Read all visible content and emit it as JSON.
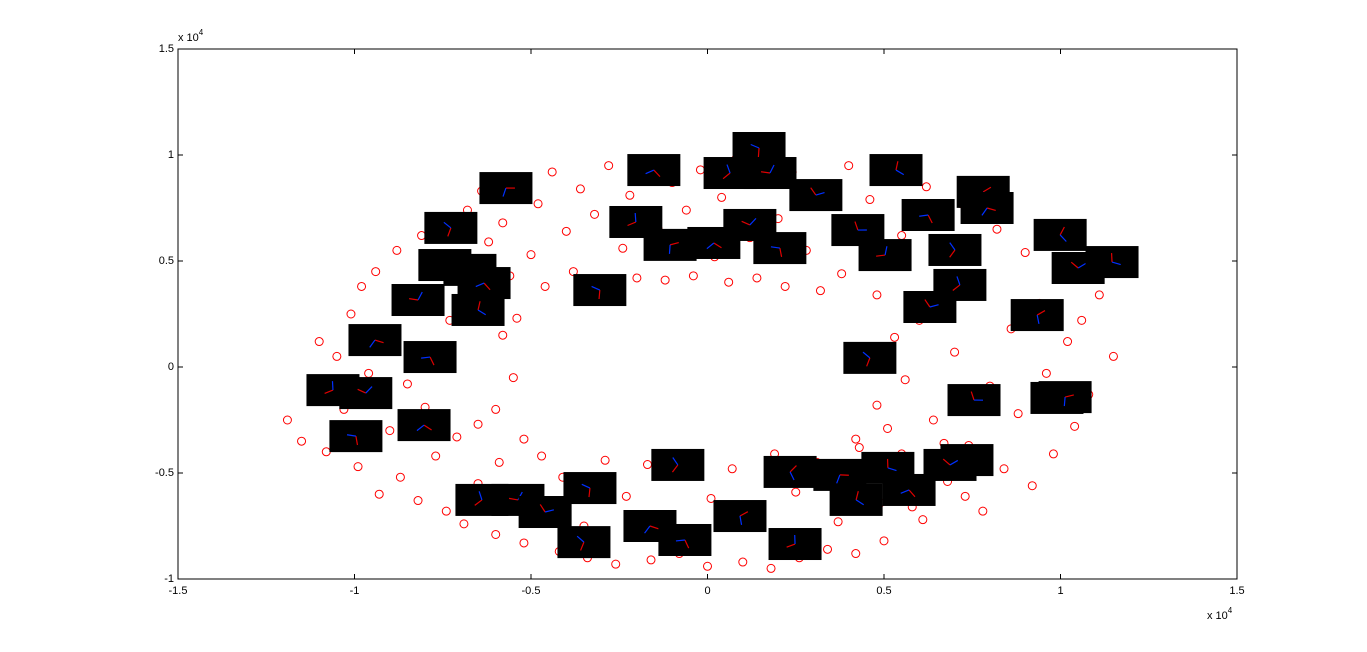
{
  "chart_data": {
    "type": "scatter",
    "xlim": [
      -15000,
      15000
    ],
    "ylim": [
      -10000,
      15000
    ],
    "xticks": [
      {
        "value": -15000,
        "label": "-1.5"
      },
      {
        "value": -10000,
        "label": "-1"
      },
      {
        "value": -5000,
        "label": "-0.5"
      },
      0,
      {
        "value": 5000,
        "label": "0.5"
      },
      {
        "value": 10000,
        "label": "1"
      },
      {
        "value": 15000,
        "label": "1.5"
      }
    ],
    "yticks": [
      {
        "value": -10000,
        "label": "-1"
      },
      {
        "value": -5000,
        "label": "-0.5"
      },
      0,
      {
        "value": 5000,
        "label": "0.5"
      },
      {
        "value": 10000,
        "label": "1"
      },
      {
        "value": 15000,
        "label": "1.5"
      }
    ],
    "x_multiplier": {
      "base": "x 10",
      "exponent": "4"
    },
    "y_multiplier": {
      "base": "x 10",
      "exponent": "4"
    },
    "color": "#ff0000",
    "grid": false,
    "x": [
      -11900,
      -11500,
      -11200,
      -11000,
      -10800,
      -10500,
      -10300,
      -10100,
      -9900,
      -9800,
      -9600,
      -9400,
      -9300,
      -9100,
      -9000,
      -8800,
      -8700,
      -8500,
      -8400,
      -8200,
      -8100,
      -8000,
      -7900,
      -7700,
      -7600,
      -7400,
      -7300,
      -7100,
      -7000,
      -6900,
      -6800,
      -6600,
      -6400,
      -6200,
      -6000,
      -5800,
      -5600,
      -5400,
      -5200,
      -5000,
      -4800,
      -4600,
      -4400,
      -4200,
      -4000,
      -3800,
      -3600,
      -3400,
      -3200,
      -3000,
      -2800,
      -2600,
      -2400,
      -2200,
      -2000,
      -1800,
      -1600,
      -1400,
      -1200,
      -1000,
      -800,
      -600,
      -400,
      -200,
      0,
      200,
      400,
      600,
      800,
      1000,
      1200,
      1400,
      1600,
      1800,
      2000,
      2200,
      2400,
      2600,
      2800,
      3000,
      3200,
      3400,
      3600,
      3800,
      4000,
      4200,
      4400,
      4600,
      4800,
      5000,
      -6500,
      -5900,
      -5300,
      -4700,
      -4100,
      -3500,
      -2900,
      -2300,
      -1700,
      -1100,
      -500,
      100,
      700,
      1300,
      1900,
      2500,
      3100,
      3700,
      4300,
      4900,
      5500,
      6100,
      6700,
      7300,
      5200,
      5500,
      5800,
      6000,
      6200,
      6400,
      6600,
      6800,
      7000,
      7200,
      7400,
      7600,
      7800,
      8000,
      8200,
      8400,
      8600,
      8800,
      9000,
      9200,
      9400,
      9600,
      9800,
      10000,
      10200,
      10400,
      10600,
      10800,
      11100,
      11500,
      4800,
      5100,
      4500,
      5300,
      4200,
      5600,
      -6000,
      -5500,
      -5800,
      -6300,
      -5200,
      -6500,
      -5400
    ],
    "values": [
      -2500,
      -3500,
      -1000,
      1200,
      -4000,
      500,
      -2000,
      2500,
      -4700,
      3800,
      -300,
      4500,
      -6000,
      1800,
      -3000,
      5500,
      -5200,
      -800,
      3000,
      -6300,
      6200,
      -1900,
      4300,
      -4200,
      1000,
      -6800,
      2200,
      -3300,
      5000,
      -7400,
      7400,
      3600,
      8300,
      5900,
      -7900,
      6800,
      4300,
      8800,
      -8300,
      5300,
      7700,
      3800,
      9200,
      -8700,
      6400,
      4500,
      8400,
      -9000,
      7200,
      3500,
      9500,
      -9300,
      5600,
      8100,
      4200,
      9700,
      -9100,
      6500,
      4100,
      8700,
      -8800,
      7400,
      4300,
      9300,
      -9400,
      5200,
      8000,
      4000,
      9800,
      -9200,
      6100,
      4200,
      8900,
      -9500,
      7000,
      3800,
      9200,
      -9000,
      5500,
      8300,
      3600,
      -8600,
      7600,
      4400,
      9500,
      -8800,
      5800,
      7900,
      3400,
      -8200,
      -5500,
      -4500,
      -6300,
      -4200,
      -5200,
      -7500,
      -4400,
      -6100,
      -4600,
      -7800,
      -4300,
      -6200,
      -4800,
      -7000,
      -4100,
      -5900,
      -4500,
      -7300,
      -3800,
      -6400,
      -4100,
      -7200,
      -3600,
      -6100,
      8900,
      6200,
      -6600,
      2200,
      8500,
      -2500,
      5000,
      -5400,
      700,
      7700,
      -3700,
      3600,
      -6800,
      -900,
      6500,
      -4800,
      1800,
      -2200,
      5400,
      -5600,
      3000,
      -300,
      -4100,
      4300,
      1200,
      -2800,
      2200,
      -1300,
      3400,
      500,
      -1800,
      -2900,
      300,
      1400,
      -3400,
      -600,
      -2000,
      -500,
      1500,
      2800,
      -3400,
      -2700,
      2300
    ],
    "thumbnails": {
      "x": [
        -5710,
        -1520,
        1460,
        640,
        1770,
        3070,
        5340,
        7810,
        7920,
        6250,
        -7270,
        -2030,
        1200,
        4260,
        9990,
        -1060,
        180,
        2050,
        7010,
        5030,
        10500,
        11460,
        -7440,
        -6730,
        -6330,
        -3050,
        7150,
        -8200,
        6300,
        -6500,
        9340,
        -9420,
        -7860,
        4600,
        -10610,
        -9680,
        7550,
        9900,
        10130,
        -8030,
        -9960,
        -840,
        7350,
        6870,
        5110,
        2340,
        3750,
        5710,
        -3330,
        -6390,
        -5370,
        -4600,
        4210,
        920,
        -1630,
        -640,
        -3500,
        2480
      ],
      "y": [
        8440,
        9290,
        10330,
        9150,
        9150,
        8110,
        9290,
        8260,
        7500,
        7170,
        6560,
        6840,
        6700,
        6460,
        6230,
        5760,
        5850,
        5610,
        5520,
        5280,
        4670,
        4950,
        4810,
        4580,
        3960,
        3630,
        3870,
        3160,
        2830,
        2690,
        2450,
        1270,
        470,
        430,
        -1090,
        -1230,
        -1560,
        -1460,
        -1420,
        -2740,
        -3260,
        -4620,
        -4390,
        -4620,
        -4760,
        -4950,
        -5090,
        -5800,
        -5710,
        -6270,
        -6270,
        -6840,
        -6270,
        -7030,
        -7500,
        -8160,
        -8260,
        -8350
      ]
    }
  }
}
